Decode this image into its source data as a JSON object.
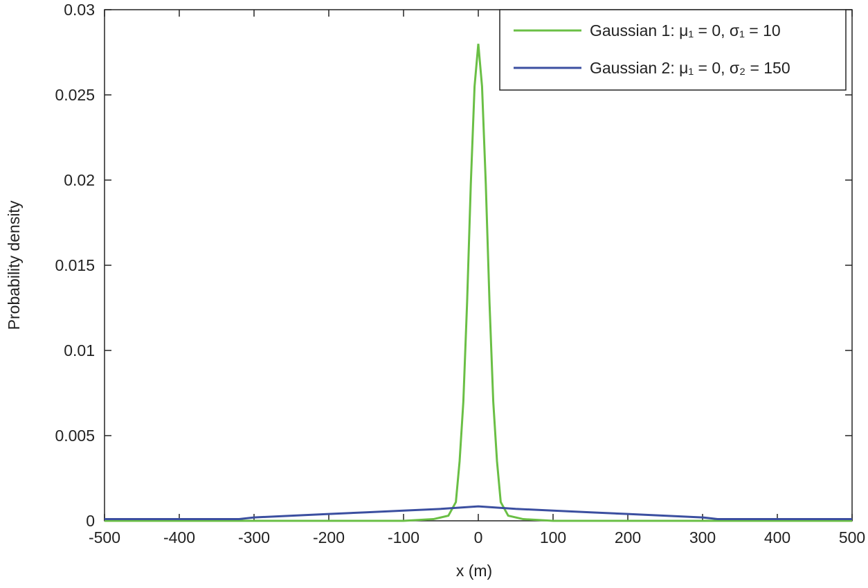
{
  "chart_data": {
    "type": "line",
    "xlabel": "x (m)",
    "ylabel": "Probability density",
    "xlim": [
      -500,
      500
    ],
    "xticks": [
      -500,
      -400,
      -300,
      -200,
      -100,
      0,
      100,
      200,
      300,
      400,
      500
    ],
    "ylim": [
      0,
      0.03
    ],
    "yticks": [
      0,
      0.005,
      0.01,
      0.015,
      0.02,
      0.025,
      0.03
    ],
    "grid": false,
    "legend": "upper right",
    "series": [
      {
        "name": "Gaussian 1: μ₁ = 0, σ₁ = 10",
        "color": "#6abf45",
        "x": [
          -500,
          -100,
          -80,
          -60,
          -40,
          -30,
          -25,
          -20,
          -15,
          -10,
          -5,
          0,
          5,
          10,
          15,
          20,
          25,
          30,
          40,
          60,
          80,
          100,
          500
        ],
        "values": [
          0,
          0,
          5e-05,
          0.0001,
          0.0003,
          0.0011,
          0.0035,
          0.007,
          0.0128,
          0.0198,
          0.0255,
          0.028,
          0.0255,
          0.0198,
          0.0128,
          0.007,
          0.0035,
          0.0011,
          0.0003,
          0.0001,
          5e-05,
          0,
          0
        ]
      },
      {
        "name": "Gaussian 2: μ₁ = 0, σ₂ = 150",
        "color": "#3b4fa0",
        "x": [
          -500,
          -320,
          -300,
          -250,
          -200,
          -150,
          -100,
          -50,
          0,
          50,
          100,
          150,
          200,
          250,
          300,
          320,
          500
        ],
        "values": [
          0.0001,
          0.0001,
          0.0002,
          0.0003,
          0.0004,
          0.0005,
          0.0006,
          0.0007,
          0.00085,
          0.0007,
          0.0006,
          0.0005,
          0.0004,
          0.0003,
          0.0002,
          0.0001,
          0.0001
        ]
      }
    ]
  }
}
